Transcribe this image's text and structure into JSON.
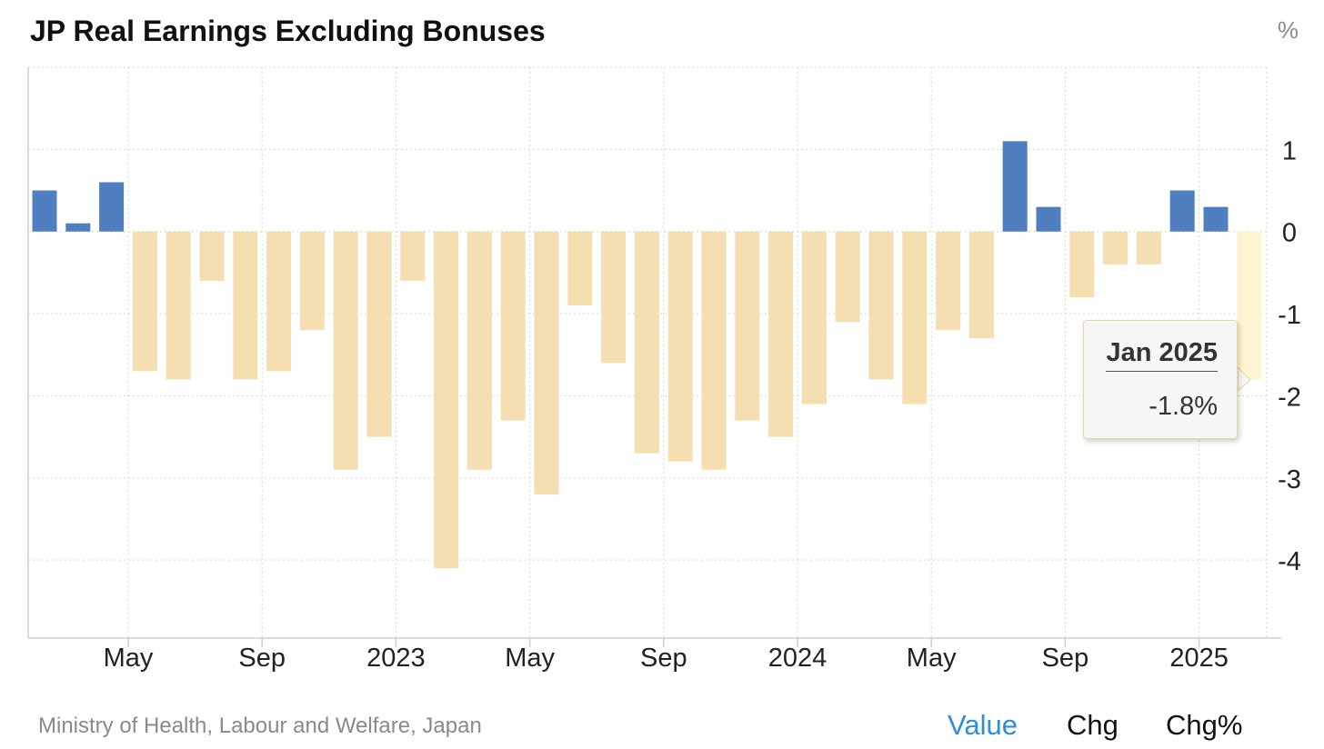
{
  "title": "JP Real Earnings Excluding Bonuses",
  "unit_label": "%",
  "source": "Ministry of Health, Labour and Welfare, Japan",
  "tabs": [
    {
      "label": "Value",
      "active": true
    },
    {
      "label": "Chg",
      "active": false
    },
    {
      "label": "Chg%",
      "active": false
    }
  ],
  "tooltip": {
    "date": "Jan 2025",
    "value": "-1.8%"
  },
  "colors": {
    "positive": "#4f7fc0",
    "negative": "#f5dfb0",
    "highlight": "#fdf5cf",
    "grid": "#dddddd",
    "axis": "#d0d0d0",
    "tab_active": "#2e8fd6"
  },
  "chart_data": {
    "type": "bar",
    "title": "JP Real Earnings Excluding Bonuses",
    "ylabel": "%",
    "ylim": [
      -4.95,
      2.0
    ],
    "yticks": [
      1,
      0,
      -1,
      -2,
      -3,
      -4
    ],
    "x_tick_labels": [
      {
        "index": 3,
        "label": "May"
      },
      {
        "index": 7,
        "label": "Sep"
      },
      {
        "index": 11,
        "label": "2023"
      },
      {
        "index": 15,
        "label": "May"
      },
      {
        "index": 19,
        "label": "Sep"
      },
      {
        "index": 23,
        "label": "2024"
      },
      {
        "index": 27,
        "label": "May"
      },
      {
        "index": 31,
        "label": "Sep"
      },
      {
        "index": 35,
        "label": "2025"
      }
    ],
    "categories": [
      "Jan 2022",
      "Feb 2022",
      "Mar 2022",
      "Apr 2022",
      "May 2022",
      "Jun 2022",
      "Jul 2022",
      "Aug 2022",
      "Sep 2022",
      "Oct 2022",
      "Nov 2022",
      "Dec 2022",
      "Jan 2023",
      "Feb 2023",
      "Mar 2023",
      "Apr 2023",
      "May 2023",
      "Jun 2023",
      "Jul 2023",
      "Aug 2023",
      "Sep 2023",
      "Oct 2023",
      "Nov 2023",
      "Dec 2023",
      "Jan 2024",
      "Feb 2024",
      "Mar 2024",
      "Apr 2024",
      "May 2024",
      "Jun 2024",
      "Jul 2024",
      "Aug 2024",
      "Sep 2024",
      "Oct 2024",
      "Nov 2024",
      "Dec 2024",
      "Jan 2025"
    ],
    "values": [
      0.5,
      0.1,
      0.6,
      -1.7,
      -1.8,
      -0.6,
      -1.8,
      -1.7,
      -1.2,
      -2.9,
      -2.5,
      -0.6,
      -4.1,
      -2.9,
      -2.3,
      -3.2,
      -0.9,
      -1.6,
      -2.7,
      -2.8,
      -2.9,
      -2.3,
      -2.5,
      -2.1,
      -1.1,
      -1.8,
      -2.1,
      -1.2,
      -1.3,
      1.1,
      0.3,
      -0.8,
      -0.4,
      -0.4,
      0.5,
      0.3,
      -1.8
    ],
    "highlight_index": 36,
    "grid": true,
    "legend": "none"
  }
}
